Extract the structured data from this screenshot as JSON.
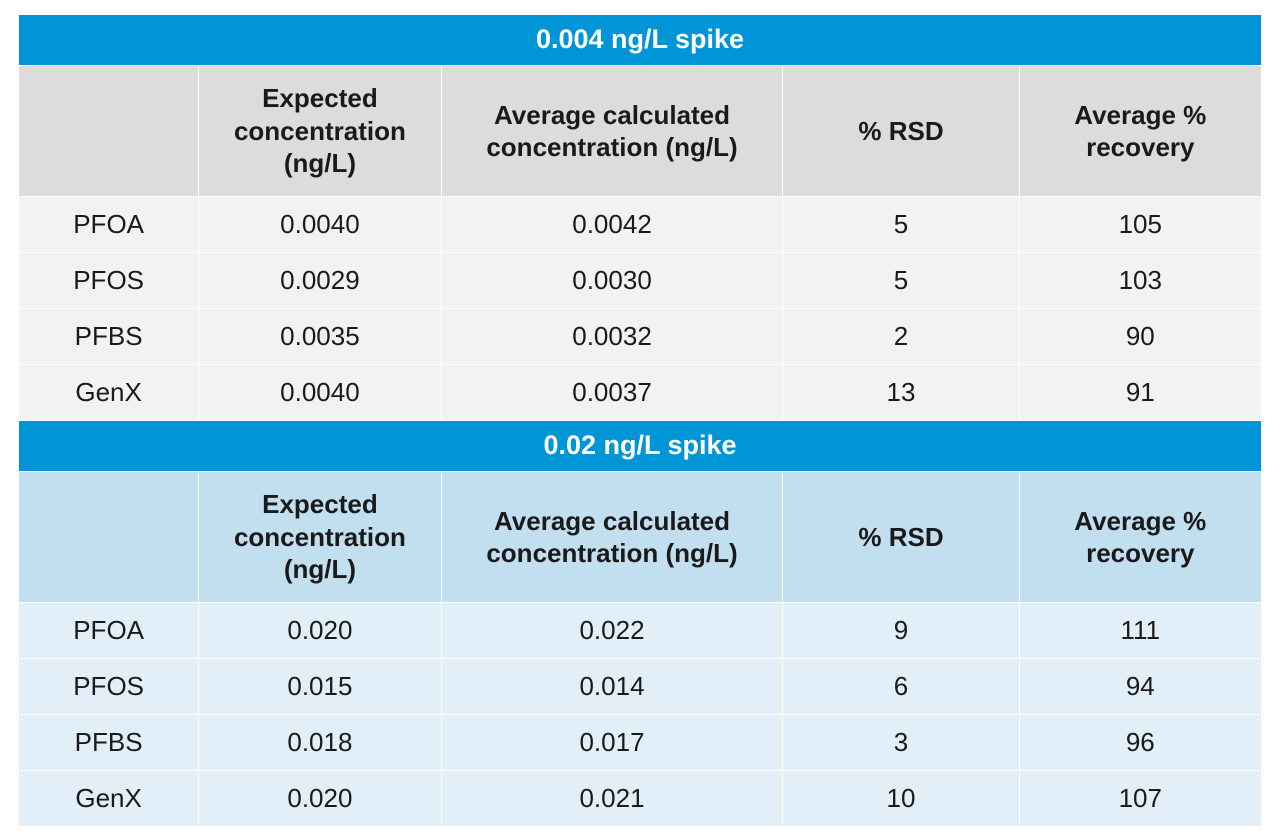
{
  "table": {
    "type": "table",
    "colors": {
      "title_bg": "#0095d6",
      "title_text": "#ffffff",
      "header_a_bg": "#dcdcdc",
      "data_a_bg": "#f2f2f2",
      "header_b_bg": "#c2dff0",
      "data_b_bg": "#e2eff8",
      "cell_border": "#ffffff",
      "text": "#1a1a1a"
    },
    "typography": {
      "body_fontsize_pt": 20,
      "title_fontsize_pt": 20,
      "header_fontweight": "600"
    },
    "column_widths_pct": [
      14.5,
      19.5,
      27.5,
      19.0,
      19.5
    ],
    "columns": [
      "",
      "Expected concentration (ng/L)",
      "Average calculated concentration (ng/L)",
      "% RSD",
      "Average % recovery"
    ],
    "sections": [
      {
        "title": "0.004 ng/L spike",
        "theme": "a",
        "rows": [
          {
            "label": "PFOA",
            "expected": "0.0040",
            "avg_calc": "0.0042",
            "rsd": "5",
            "recovery": "105"
          },
          {
            "label": "PFOS",
            "expected": "0.0029",
            "avg_calc": "0.0030",
            "rsd": "5",
            "recovery": "103"
          },
          {
            "label": "PFBS",
            "expected": "0.0035",
            "avg_calc": "0.0032",
            "rsd": "2",
            "recovery": "90"
          },
          {
            "label": "GenX",
            "expected": "0.0040",
            "avg_calc": "0.0037",
            "rsd": "13",
            "recovery": "91"
          }
        ]
      },
      {
        "title": "0.02 ng/L spike",
        "theme": "b",
        "rows": [
          {
            "label": "PFOA",
            "expected": "0.020",
            "avg_calc": "0.022",
            "rsd": "9",
            "recovery": "111"
          },
          {
            "label": "PFOS",
            "expected": "0.015",
            "avg_calc": "0.014",
            "rsd": "6",
            "recovery": "94"
          },
          {
            "label": "PFBS",
            "expected": "0.018",
            "avg_calc": "0.017",
            "rsd": "3",
            "recovery": "96"
          },
          {
            "label": "GenX",
            "expected": "0.020",
            "avg_calc": "0.021",
            "rsd": "10",
            "recovery": "107"
          }
        ]
      }
    ]
  }
}
